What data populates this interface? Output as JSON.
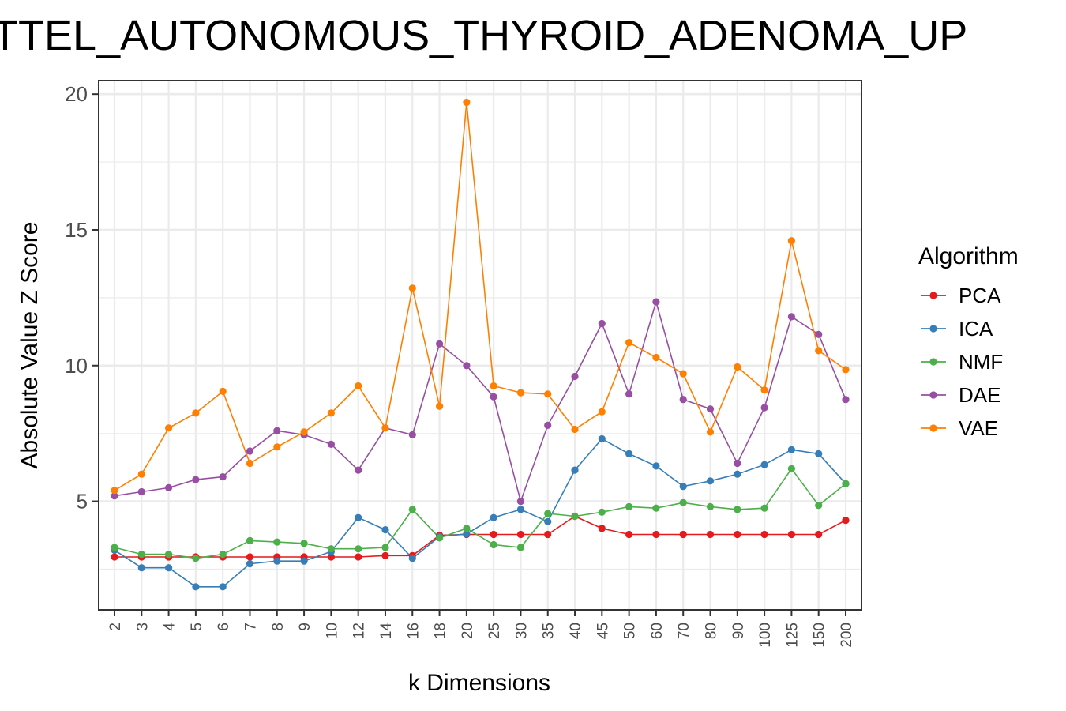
{
  "chart_data": {
    "type": "line",
    "title": "ATTEL_AUTONOMOUS_THYROID_ADENOMA_UP",
    "xlabel": "k Dimensions",
    "ylabel": "Absolute Value Z Score",
    "categories": [
      "2",
      "3",
      "4",
      "5",
      "6",
      "7",
      "8",
      "9",
      "10",
      "12",
      "14",
      "16",
      "18",
      "20",
      "25",
      "30",
      "35",
      "40",
      "45",
      "50",
      "60",
      "70",
      "80",
      "90",
      "100",
      "125",
      "150",
      "200"
    ],
    "ylim": [
      1,
      20.5
    ],
    "yticks": [
      5,
      10,
      15,
      20
    ],
    "ytick_labels": [
      "5",
      "10",
      "15",
      "20"
    ],
    "grid": true,
    "legend_title": "Algorithm",
    "legend_position": "right",
    "series": [
      {
        "name": "PCA",
        "color": "#e41a1c",
        "values": [
          2.95,
          2.95,
          2.95,
          2.95,
          2.95,
          2.95,
          2.95,
          2.95,
          2.95,
          2.95,
          3.0,
          3.0,
          3.75,
          3.78,
          3.78,
          3.78,
          3.78,
          4.45,
          4.0,
          3.78,
          3.78,
          3.78,
          3.78,
          3.78,
          3.78,
          3.78,
          3.78,
          4.3
        ]
      },
      {
        "name": "ICA",
        "color": "#377eb8",
        "values": [
          3.2,
          2.55,
          2.55,
          1.85,
          1.85,
          2.7,
          2.8,
          2.8,
          3.15,
          4.4,
          3.95,
          2.9,
          3.7,
          3.8,
          4.4,
          4.7,
          4.25,
          6.15,
          7.3,
          6.75,
          6.3,
          5.55,
          5.75,
          6.0,
          6.35,
          6.9,
          6.75,
          5.65
        ]
      },
      {
        "name": "NMF",
        "color": "#4daf4a",
        "values": [
          3.3,
          3.05,
          3.05,
          2.9,
          3.05,
          3.55,
          3.5,
          3.45,
          3.25,
          3.25,
          3.3,
          4.7,
          3.65,
          4.0,
          3.4,
          3.3,
          4.55,
          4.45,
          4.6,
          4.8,
          4.75,
          4.95,
          4.8,
          4.7,
          4.75,
          6.2,
          4.85,
          5.65
        ]
      },
      {
        "name": "DAE",
        "color": "#984ea3",
        "values": [
          5.2,
          5.35,
          5.5,
          5.8,
          5.9,
          6.85,
          7.6,
          7.45,
          7.1,
          6.15,
          7.7,
          7.45,
          10.8,
          10.0,
          8.85,
          5.0,
          7.8,
          9.6,
          11.55,
          8.95,
          12.35,
          8.75,
          8.4,
          6.4,
          8.45,
          11.8,
          11.15,
          8.75
        ]
      },
      {
        "name": "VAE",
        "color": "#ff7f00",
        "values": [
          5.4,
          6.0,
          7.7,
          8.25,
          9.05,
          6.4,
          7.0,
          7.55,
          8.25,
          9.25,
          7.7,
          12.85,
          8.5,
          19.7,
          9.25,
          9.0,
          8.95,
          7.65,
          8.3,
          10.85,
          10.3,
          9.7,
          7.55,
          9.95,
          9.1,
          14.6,
          10.55,
          9.85
        ]
      }
    ]
  }
}
